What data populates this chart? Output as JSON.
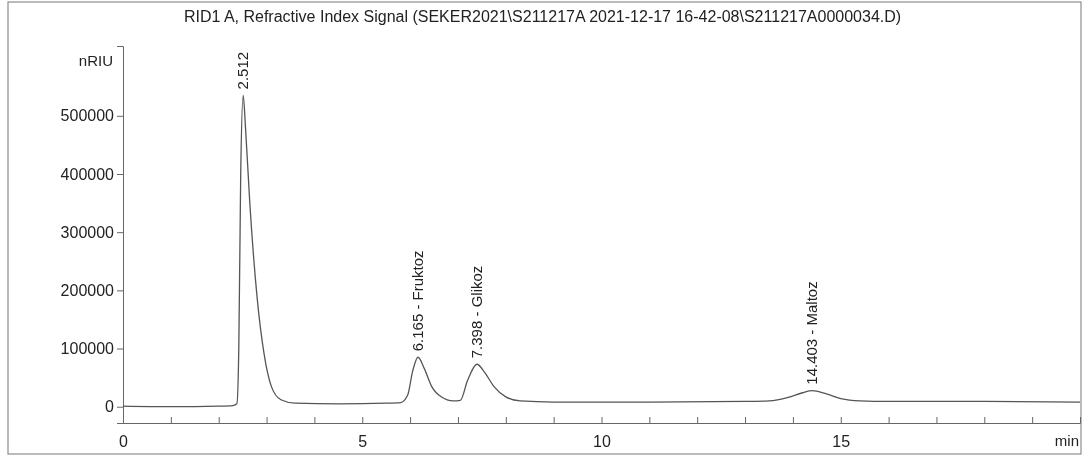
{
  "chart_data": {
    "type": "line",
    "title": "RID1 A, Refractive Index Signal (SEKER2021\\S211217A 2021-12-17 16-42-08\\S211217A0000034.D)",
    "xlabel": "min",
    "ylabel": "nRIU",
    "xlim": [
      0,
      20
    ],
    "ylim": [
      -28000,
      620000
    ],
    "xticks": [
      0,
      {
        "value": 1,
        "label": null
      },
      {
        "value": 2,
        "label": null
      },
      {
        "value": 3,
        "label": null
      },
      {
        "value": 4,
        "label": null
      },
      5,
      {
        "value": 6,
        "label": null
      },
      {
        "value": 7,
        "label": null
      },
      {
        "value": 8,
        "label": null
      },
      {
        "value": 9,
        "label": null
      },
      10,
      {
        "value": 11,
        "label": null
      },
      {
        "value": 12,
        "label": null
      },
      {
        "value": 13,
        "label": null
      },
      {
        "value": 14,
        "label": null
      },
      15,
      {
        "value": 16,
        "label": null
      },
      {
        "value": 17,
        "label": null
      },
      {
        "value": 18,
        "label": null
      },
      {
        "value": 19,
        "label": null
      }
    ],
    "yticks": [
      0,
      100000,
      200000,
      300000,
      400000,
      500000
    ],
    "grid": false,
    "line_style": "solid",
    "series": [
      {
        "color": "#555555",
        "x": [
          0,
          1,
          2,
          2.3,
          2.38,
          2.42,
          2.46,
          2.512,
          2.56,
          2.65,
          2.8,
          2.95,
          3.1,
          3.3,
          3.6,
          4.5,
          5.5,
          5.8,
          5.95,
          6.05,
          6.165,
          6.3,
          6.45,
          6.65,
          6.9,
          7.05,
          7.2,
          7.398,
          7.55,
          7.75,
          8.0,
          8.3,
          9,
          11,
          13,
          13.5,
          13.9,
          14.2,
          14.403,
          14.7,
          15.0,
          15.4,
          16,
          18,
          20
        ],
        "values": [
          1000,
          0,
          1000,
          2000,
          5000,
          100000,
          400000,
          535000,
          480000,
          350000,
          190000,
          90000,
          35000,
          12000,
          6000,
          5000,
          6000,
          7000,
          20000,
          60000,
          85000,
          65000,
          35000,
          17000,
          10000,
          11000,
          45000,
          73000,
          60000,
          35000,
          17000,
          10000,
          8000,
          8000,
          9000,
          10000,
          16000,
          24000,
          27500,
          22000,
          14000,
          10000,
          9000,
          9000,
          8000
        ]
      }
    ],
    "annotations": [
      {
        "text": "2.512",
        "x": 2.512,
        "y": 535000
      },
      {
        "text": "6.165 -  Fruktoz",
        "x": 6.165,
        "y": 85000
      },
      {
        "text": "7.398 -  Glikoz",
        "x": 7.398,
        "y": 73000
      },
      {
        "text": "14.403 -  Maltoz",
        "x": 14.403,
        "y": 27500
      }
    ]
  }
}
